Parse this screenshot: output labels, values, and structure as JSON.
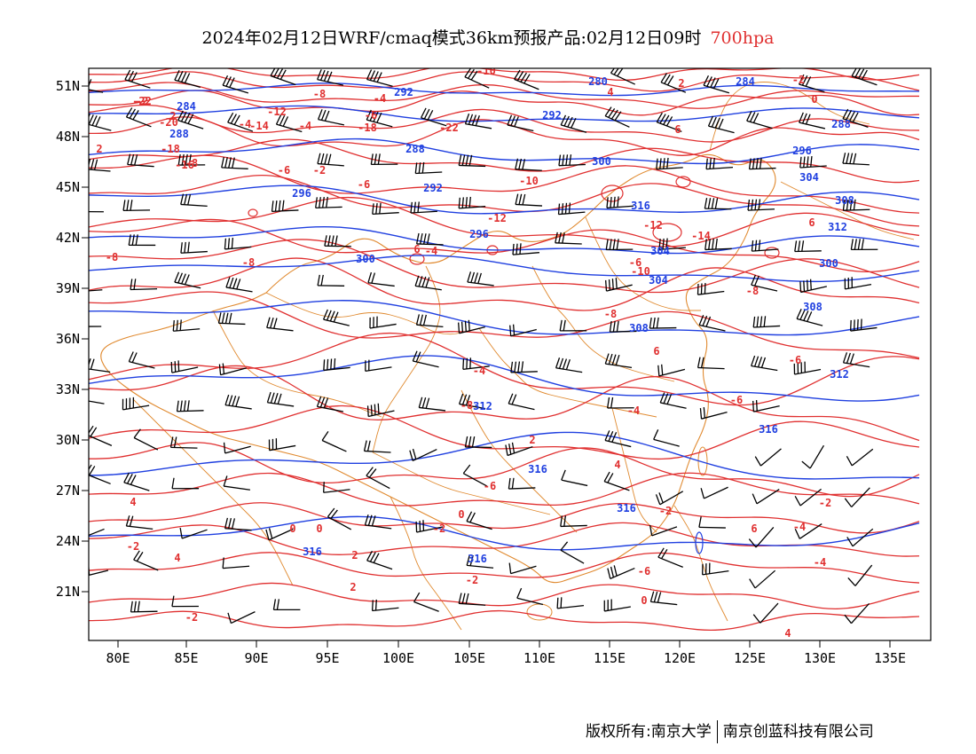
{
  "title": {
    "main": "2024年02月12日WRF/cmaq模式36km预报产品:02月12日09时",
    "level": "700hpa"
  },
  "map": {
    "lon_labels": [
      "80E",
      "85E",
      "90E",
      "95E",
      "100E",
      "105E",
      "110E",
      "115E",
      "120E",
      "125E",
      "130E",
      "135E"
    ],
    "lat_labels": [
      "51N",
      "48N",
      "45N",
      "42N",
      "39N",
      "36N",
      "33N",
      "30N",
      "27N",
      "24N",
      "21N"
    ],
    "colors": {
      "temperature_contour": "#e03030",
      "height_contour": "#2040e0",
      "boundary": "#e08a30",
      "wind_barb": "#000000"
    },
    "temperature_labels": [
      "-22",
      "-20",
      "-18",
      "-16",
      "-14",
      "-12",
      "-10",
      "-8",
      "-6",
      "-4",
      "-2",
      "0",
      "2",
      "4",
      "6",
      "-22",
      "-18",
      "-10",
      "-12",
      "-12",
      "-14",
      "-10",
      "-8",
      "-8",
      "-6",
      "-6",
      "-8",
      "-4",
      "-4",
      "-4",
      "-8",
      "-6",
      "-6",
      "-8",
      "-6",
      "-4",
      "0",
      "-2",
      "4",
      "-2",
      "-2",
      "-4",
      "-6",
      "0",
      "-2",
      "2",
      "-2",
      "4",
      "0",
      "2",
      "4",
      "2",
      "2",
      "-4",
      "-4",
      "-6",
      "4",
      "6",
      "6",
      "6",
      "6",
      "-8",
      "-2",
      "0",
      "-2",
      "2",
      "-2"
    ],
    "height_labels": [
      "284",
      "288",
      "288",
      "292",
      "292",
      "296",
      "296",
      "300",
      "304",
      "308",
      "312",
      "316",
      "280",
      "284",
      "288",
      "292",
      "296",
      "300",
      "304",
      "308",
      "316",
      "312",
      "304",
      "300",
      "308",
      "312",
      "316",
      "316",
      "316",
      "316"
    ]
  },
  "footer": {
    "copyright": "版权所有:南京大学",
    "company": "南京创蓝科技有限公司"
  }
}
